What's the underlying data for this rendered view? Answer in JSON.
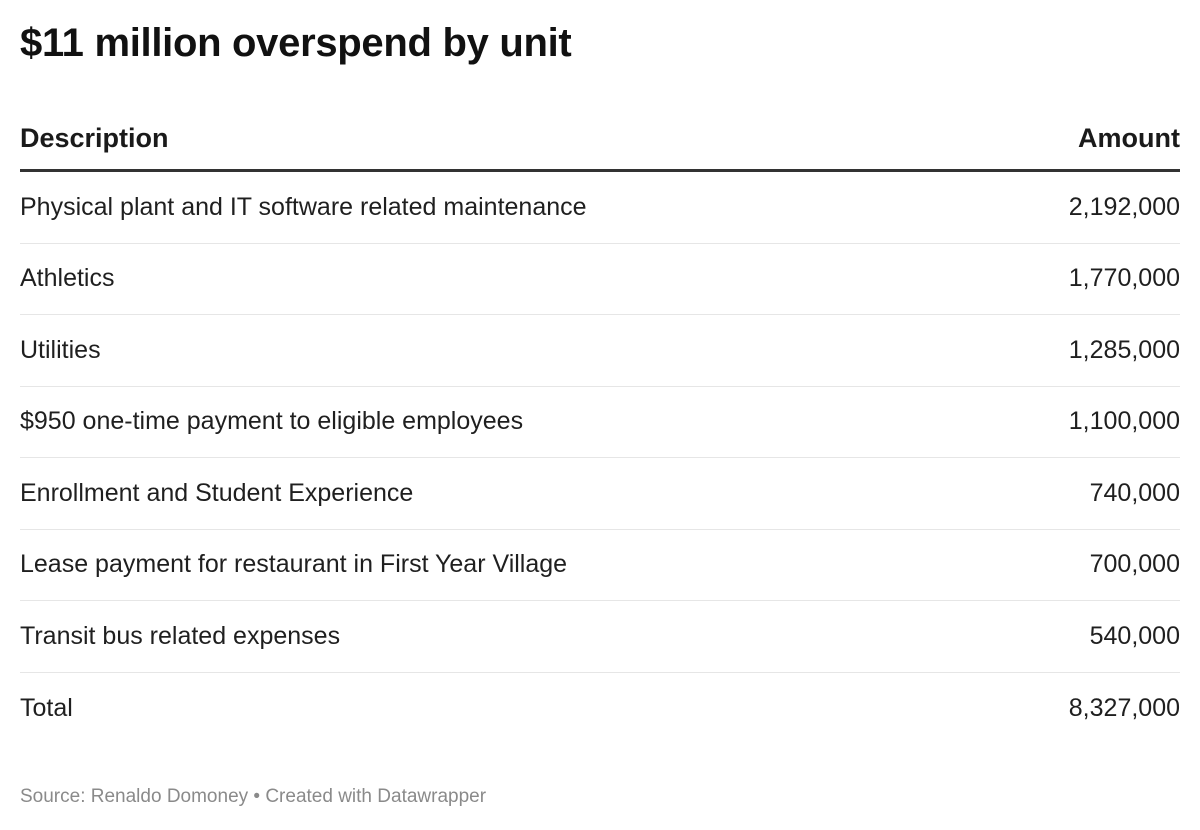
{
  "chart_data": {
    "type": "table",
    "title": "$11 million overspend by unit",
    "columns": [
      "Description",
      "Amount"
    ],
    "rows": [
      {
        "description": "Physical plant and IT software related maintenance",
        "amount": "2,192,000"
      },
      {
        "description": "Athletics",
        "amount": "1,770,000"
      },
      {
        "description": "Utilities",
        "amount": "1,285,000"
      },
      {
        "description": "$950 one-time payment to eligible employees",
        "amount": "1,100,000"
      },
      {
        "description": "Enrollment and Student Experience",
        "amount": "740,000"
      },
      {
        "description": "Lease payment for restaurant in First Year Village",
        "amount": "700,000"
      },
      {
        "description": "Transit bus related expenses",
        "amount": "540,000"
      },
      {
        "description": "Total",
        "amount": "8,327,000"
      }
    ],
    "source": "Source: Renaldo Domoney • Created with Datawrapper"
  },
  "colors": {
    "text": "#1a1a1a",
    "header_rule": "#333333",
    "row_rule": "#e6e6e6",
    "footer_text": "#8a8a8a"
  }
}
